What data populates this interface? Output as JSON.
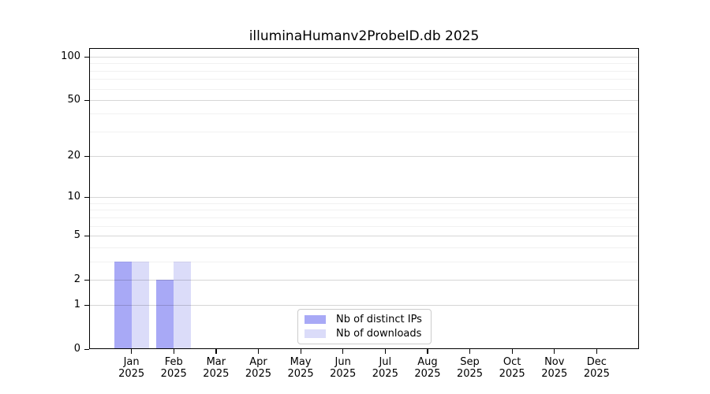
{
  "title": "illuminaHumanv2ProbeID.db 2025",
  "chart_data": {
    "type": "bar",
    "title": "illuminaHumanv2ProbeID.db 2025",
    "categories": [
      "Jan",
      "Feb",
      "Mar",
      "Apr",
      "May",
      "Jun",
      "Jul",
      "Aug",
      "Sep",
      "Oct",
      "Nov",
      "Dec"
    ],
    "x_tick_year_line": "2025",
    "series": [
      {
        "name": "Nb of distinct IPs",
        "color": "#a8a9f6",
        "values": [
          3,
          2,
          0,
          0,
          0,
          0,
          0,
          0,
          0,
          0,
          0,
          0
        ]
      },
      {
        "name": "Nb of downloads",
        "color": "#dbdcf9",
        "values": [
          3,
          3,
          0,
          0,
          0,
          0,
          0,
          0,
          0,
          0,
          0,
          0
        ]
      }
    ],
    "y_axis": {
      "scale": "log1p",
      "tick_labels": [
        0,
        1,
        2,
        5,
        10,
        20,
        50,
        100
      ],
      "minor_grid_values": [
        3,
        4,
        6,
        7,
        8,
        9,
        30,
        40,
        60,
        70,
        80,
        90
      ],
      "ylim": [
        0,
        110
      ]
    },
    "xlabel": "",
    "ylabel": "",
    "grid": "horizontal",
    "legend_position": "inside-bottom-center"
  },
  "colors": {
    "background": "#ffffff",
    "axis_frame": "#000000",
    "bar_distinct_ips": "#a8a9f6",
    "bar_downloads": "#dbdcf9",
    "legend_border": "#cccccc"
  }
}
